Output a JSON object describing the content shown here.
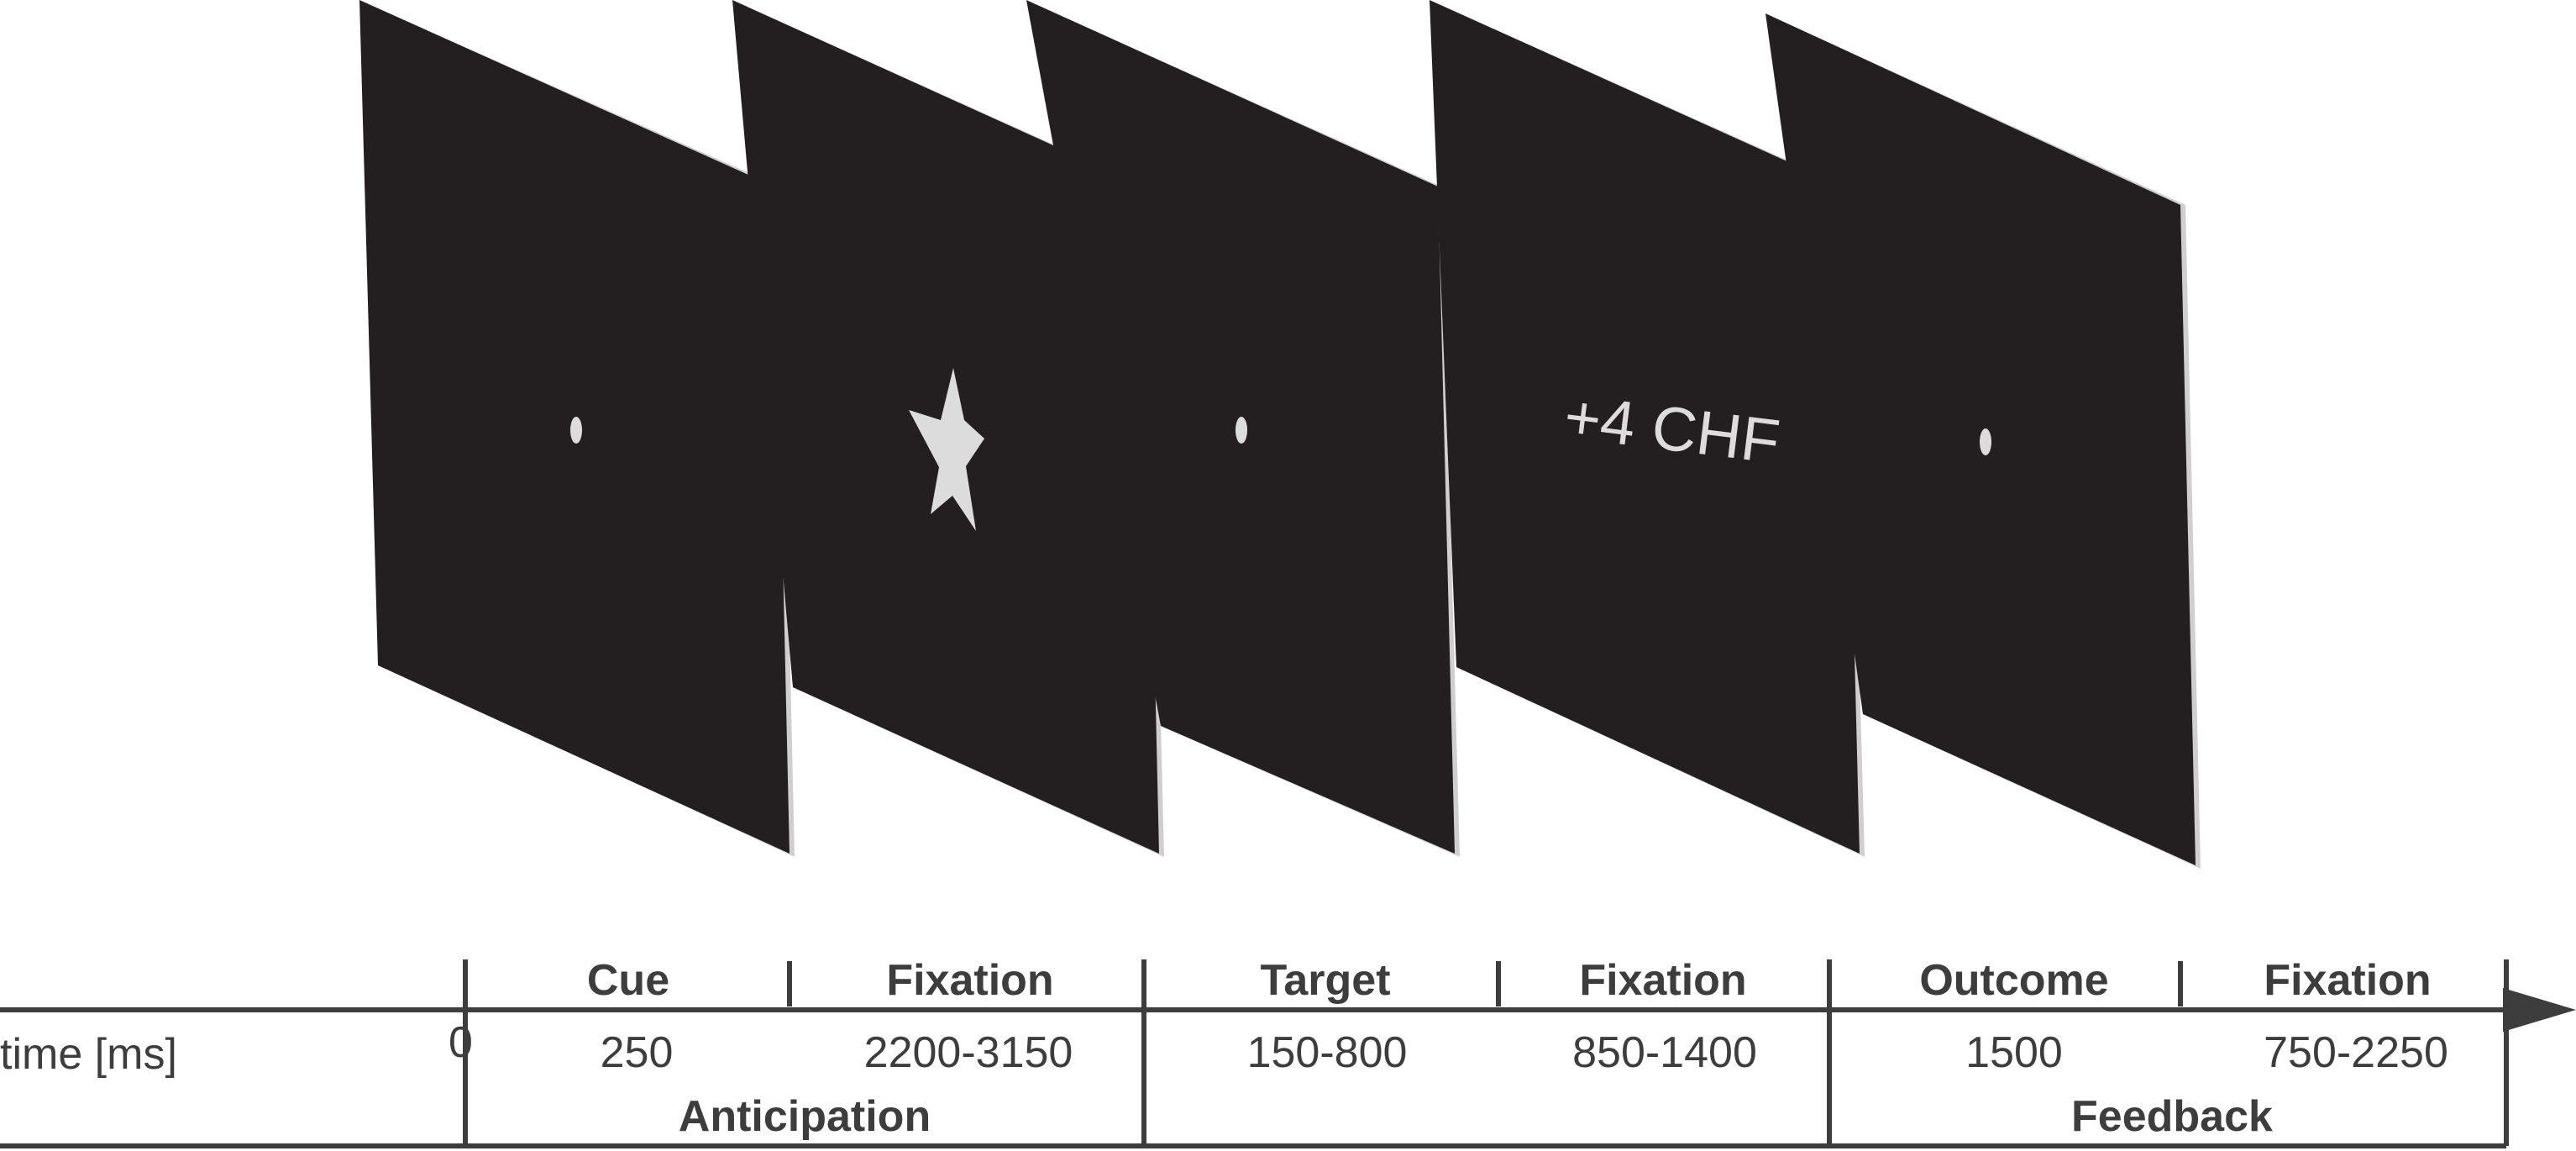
{
  "screens": [
    {
      "content": "fixation-dot"
    },
    {
      "content": "star-cue"
    },
    {
      "content": "fixation-dot"
    },
    {
      "content": "text",
      "text": "+4 CHF"
    },
    {
      "content": "fixation-dot"
    }
  ],
  "timeline": {
    "axis_label": "time [ms]",
    "origin_label": "0",
    "phases": [
      {
        "name": "Cue",
        "duration": "250"
      },
      {
        "name": "Fixation",
        "duration": "2200-3150"
      },
      {
        "name": "Target",
        "duration": "150-800"
      },
      {
        "name": "Fixation",
        "duration": "850-1400"
      },
      {
        "name": "Outcome",
        "duration": "1500"
      },
      {
        "name": "Fixation",
        "duration": "750-2250"
      }
    ],
    "groups": [
      {
        "name": "Anticipation"
      },
      {
        "name": "Feedback"
      }
    ]
  },
  "colors": {
    "screen": "#231f20",
    "screen_edge": "#cfcfcf",
    "stimulus": "#dcdcdc",
    "line": "#3d3d3d",
    "text": "#3d3d3d"
  }
}
